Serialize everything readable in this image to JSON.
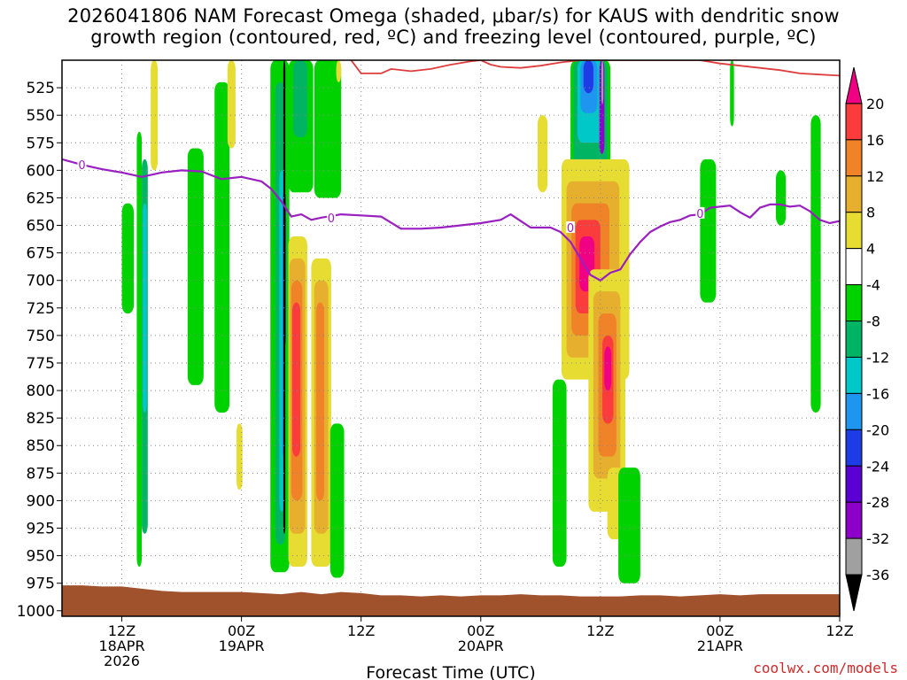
{
  "title_line1": "2026041806 NAM Forecast Omega (shaded, μbar/s) for KAUS with dendritic snow",
  "title_line2": "growth region (contoured, red, ºC) and freezing level (contoured, purple, ºC)",
  "credit": "coolwx.com/models",
  "chart_data": {
    "type": "heatmap",
    "title": "2026041806 NAM Forecast Omega (shaded, μbar/s) for KAUS with dendritic snow growth region (contoured, red, ºC) and freezing level (contoured, purple, ºC)",
    "xlabel": "Forecast Time (UTC)",
    "ylabel": "Pressure (hPa)",
    "x_hours_range": [
      6,
      84
    ],
    "y_pressure_range": [
      500,
      1005
    ],
    "y_ticks": [
      525,
      550,
      575,
      600,
      625,
      650,
      675,
      700,
      725,
      750,
      775,
      800,
      825,
      850,
      875,
      900,
      925,
      950,
      975,
      1000
    ],
    "x_ticks": [
      {
        "hour": 12,
        "lines": [
          "12Z",
          "18APR",
          "2026"
        ]
      },
      {
        "hour": 24,
        "lines": [
          "00Z",
          "19APR"
        ]
      },
      {
        "hour": 36,
        "lines": [
          "12Z"
        ]
      },
      {
        "hour": 48,
        "lines": [
          "00Z",
          "20APR"
        ]
      },
      {
        "hour": 60,
        "lines": [
          "12Z"
        ]
      },
      {
        "hour": 72,
        "lines": [
          "00Z",
          "21APR"
        ]
      },
      {
        "hour": 84,
        "lines": [
          "12Z"
        ]
      }
    ],
    "colorbar": {
      "levels": [
        -36,
        -32,
        -28,
        -24,
        -20,
        -16,
        -12,
        -8,
        -4,
        4,
        8,
        12,
        16,
        20
      ],
      "colors": [
        "#000000",
        "#a0a0a0",
        "#8c00c8",
        "#5a00d2",
        "#1e3ce6",
        "#1e96f0",
        "#00c8c8",
        "#00b464",
        "#00d200",
        "#ffffff",
        "#e6dc32",
        "#e6af2d",
        "#f08228",
        "#fa3c3c",
        "#f00082"
      ]
    },
    "omega_cells": [
      {
        "t": [
          13.5,
          14.0
        ],
        "p": [
          565,
          960
        ],
        "v": -6
      },
      {
        "t": [
          14.0,
          14.6
        ],
        "p": [
          590,
          930
        ],
        "v": -10
      },
      {
        "t": [
          14.1,
          14.5
        ],
        "p": [
          630,
          820
        ],
        "v": -14
      },
      {
        "t": [
          12.0,
          13.2
        ],
        "p": [
          630,
          730
        ],
        "v": -6
      },
      {
        "t": [
          18.6,
          20.2
        ],
        "p": [
          580,
          795
        ],
        "v": -6
      },
      {
        "t": [
          21.3,
          22.8
        ],
        "p": [
          520,
          820
        ],
        "v": -6
      },
      {
        "t": [
          14.9,
          15.6
        ],
        "p": [
          500,
          600
        ],
        "v": 5
      },
      {
        "t": [
          22.6,
          23.4
        ],
        "p": [
          500,
          580
        ],
        "v": 5
      },
      {
        "t": [
          23.5,
          24.1
        ],
        "p": [
          830,
          890
        ],
        "v": 5
      },
      {
        "t": [
          26.9,
          28.8
        ],
        "p": [
          500,
          965
        ],
        "v": -6
      },
      {
        "t": [
          27.4,
          28.4
        ],
        "p": [
          520,
          940
        ],
        "v": -10
      },
      {
        "t": [
          27.8,
          28.3
        ],
        "p": [
          600,
          910
        ],
        "v": -14
      },
      {
        "t": [
          28.1,
          28.4
        ],
        "p": [
          620,
          860
        ],
        "v": -18
      },
      {
        "t": [
          28.2,
          28.45
        ],
        "p": [
          620,
          760
        ],
        "v": -26
      },
      {
        "t": [
          28.2,
          28.4
        ],
        "p": [
          500,
          930
        ],
        "v": -38
      },
      {
        "t": [
          28.7,
          31.2
        ],
        "p": [
          500,
          620
        ],
        "v": -6
      },
      {
        "t": [
          29.2,
          30.6
        ],
        "p": [
          500,
          570
        ],
        "v": -10
      },
      {
        "t": [
          28.7,
          30.6
        ],
        "p": [
          660,
          960
        ],
        "v": 5
      },
      {
        "t": [
          28.8,
          30.4
        ],
        "p": [
          680,
          930
        ],
        "v": 9
      },
      {
        "t": [
          29.0,
          30.1
        ],
        "p": [
          700,
          900
        ],
        "v": 13
      },
      {
        "t": [
          29.1,
          29.9
        ],
        "p": [
          720,
          860
        ],
        "v": 17
      },
      {
        "t": [
          31.0,
          33.0
        ],
        "p": [
          680,
          960
        ],
        "v": 5
      },
      {
        "t": [
          31.3,
          32.7
        ],
        "p": [
          700,
          930
        ],
        "v": 9
      },
      {
        "t": [
          31.5,
          32.3
        ],
        "p": [
          720,
          900
        ],
        "v": 13
      },
      {
        "t": [
          32.9,
          34.3
        ],
        "p": [
          830,
          970
        ],
        "v": -6
      },
      {
        "t": [
          31.3,
          34.0
        ],
        "p": [
          500,
          625
        ],
        "v": -6
      },
      {
        "t": [
          33.5,
          34.0
        ],
        "p": [
          500,
          520
        ],
        "v": 5
      },
      {
        "t": [
          53.7,
          54.7
        ],
        "p": [
          550,
          620
        ],
        "v": 5
      },
      {
        "t": [
          55.2,
          56.6
        ],
        "p": [
          790,
          960
        ],
        "v": -6
      },
      {
        "t": [
          57.0,
          61.0
        ],
        "p": [
          500,
          640
        ],
        "v": -6
      },
      {
        "t": [
          57.3,
          60.7
        ],
        "p": [
          500,
          605
        ],
        "v": -10
      },
      {
        "t": [
          57.7,
          60.2
        ],
        "p": [
          500,
          575
        ],
        "v": -14
      },
      {
        "t": [
          58.0,
          59.7
        ],
        "p": [
          500,
          548
        ],
        "v": -18
      },
      {
        "t": [
          58.3,
          59.3
        ],
        "p": [
          500,
          530
        ],
        "v": -22
      },
      {
        "t": [
          59.9,
          60.4
        ],
        "p": [
          500,
          585
        ],
        "v": -28
      },
      {
        "t": [
          60.1,
          60.3
        ],
        "p": [
          500,
          540
        ],
        "v": -34
      },
      {
        "t": [
          56.1,
          62.9
        ],
        "p": [
          590,
          790
        ],
        "v": 5
      },
      {
        "t": [
          56.6,
          61.9
        ],
        "p": [
          610,
          770
        ],
        "v": 9
      },
      {
        "t": [
          57.1,
          60.9
        ],
        "p": [
          630,
          750
        ],
        "v": 13
      },
      {
        "t": [
          57.5,
          60.0
        ],
        "p": [
          645,
          730
        ],
        "v": 17
      },
      {
        "t": [
          57.9,
          59.4
        ],
        "p": [
          660,
          710
        ],
        "v": 21
      },
      {
        "t": [
          58.8,
          62.5
        ],
        "p": [
          690,
          910
        ],
        "v": 5
      },
      {
        "t": [
          59.3,
          62.0
        ],
        "p": [
          710,
          880
        ],
        "v": 9
      },
      {
        "t": [
          59.8,
          61.6
        ],
        "p": [
          730,
          860
        ],
        "v": 13
      },
      {
        "t": [
          60.2,
          61.3
        ],
        "p": [
          750,
          830
        ],
        "v": 17
      },
      {
        "t": [
          60.4,
          61.1
        ],
        "p": [
          760,
          800
        ],
        "v": 21
      },
      {
        "t": [
          60.7,
          62.4
        ],
        "p": [
          870,
          935
        ],
        "v": 5
      },
      {
        "t": [
          61.8,
          64.0
        ],
        "p": [
          870,
          975
        ],
        "v": -6
      },
      {
        "t": [
          70.0,
          71.6
        ],
        "p": [
          590,
          720
        ],
        "v": -6
      },
      {
        "t": [
          73.0,
          73.4
        ],
        "p": [
          500,
          560
        ],
        "v": -6
      },
      {
        "t": [
          77.6,
          78.6
        ],
        "p": [
          600,
          650
        ],
        "v": -6
      },
      {
        "t": [
          81.1,
          82.1
        ],
        "p": [
          550,
          820
        ],
        "v": -6
      },
      {
        "t": [
          84.5,
          86.1
        ],
        "p": [
          500,
          600
        ],
        "v": -6
      },
      {
        "t": [
          84.3,
          85.9
        ],
        "p": [
          600,
          760
        ],
        "v": -6
      },
      {
        "t": [
          84.8,
          85.5
        ],
        "p": [
          640,
          720
        ],
        "v": -10
      },
      {
        "t": [
          86.4,
          88.2
        ],
        "p": [
          630,
          830
        ],
        "v": -6
      },
      {
        "t": [
          87.0,
          88.0
        ],
        "p": [
          700,
          830
        ],
        "v": -10
      },
      {
        "t": [
          87.8,
          91.3
        ],
        "p": [
          665,
          970
        ],
        "v": -6
      },
      {
        "t": [
          88.8,
          90.1
        ],
        "p": [
          700,
          930
        ],
        "v": -10
      }
    ],
    "freezing_level": {
      "color": "#9a1fc0",
      "label": "0",
      "points": [
        [
          6,
          590
        ],
        [
          8,
          595
        ],
        [
          10,
          599
        ],
        [
          12,
          602
        ],
        [
          14,
          606
        ],
        [
          16,
          602
        ],
        [
          18,
          600
        ],
        [
          20,
          601
        ],
        [
          22,
          608
        ],
        [
          24,
          606
        ],
        [
          26,
          610
        ],
        [
          27,
          617
        ],
        [
          28,
          628
        ],
        [
          29,
          642
        ],
        [
          30,
          640
        ],
        [
          31,
          645
        ],
        [
          32,
          643
        ],
        [
          34,
          640
        ],
        [
          36,
          641
        ],
        [
          38,
          642
        ],
        [
          40,
          653
        ],
        [
          42,
          653
        ],
        [
          44,
          652
        ],
        [
          46,
          650
        ],
        [
          48,
          648
        ],
        [
          50,
          645
        ],
        [
          51,
          640
        ],
        [
          52,
          646
        ],
        [
          53,
          652
        ],
        [
          55,
          652
        ],
        [
          56,
          656
        ],
        [
          57,
          665
        ],
        [
          58,
          680
        ],
        [
          59,
          695
        ],
        [
          60,
          700
        ],
        [
          61,
          693
        ],
        [
          62,
          690
        ],
        [
          63,
          676
        ],
        [
          64,
          665
        ],
        [
          65,
          656
        ],
        [
          66,
          651
        ],
        [
          67,
          647
        ],
        [
          68,
          645
        ],
        [
          69,
          641
        ],
        [
          70,
          640
        ],
        [
          71,
          634
        ],
        [
          72,
          633
        ],
        [
          73,
          632
        ],
        [
          74,
          638
        ],
        [
          75,
          643
        ],
        [
          76,
          634
        ],
        [
          77,
          631
        ],
        [
          78,
          631
        ],
        [
          79,
          633
        ],
        [
          80,
          632
        ],
        [
          81,
          637
        ],
        [
          82,
          645
        ],
        [
          83,
          648
        ],
        [
          84,
          646
        ],
        [
          85,
          651
        ],
        [
          86,
          653
        ],
        [
          87,
          657
        ],
        [
          88,
          656
        ],
        [
          89,
          654
        ],
        [
          90,
          652
        ],
        [
          91,
          653
        ],
        [
          91.8,
          640
        ]
      ],
      "label_points": [
        [
          8,
          595
        ],
        [
          33,
          643
        ],
        [
          57,
          652
        ],
        [
          70,
          639
        ]
      ]
    },
    "dendritic_growth": {
      "color": "#e03c3c",
      "points": [
        [
          35,
          500
        ],
        [
          36,
          512
        ],
        [
          38,
          512
        ],
        [
          39,
          508
        ],
        [
          41,
          510
        ],
        [
          43,
          508
        ],
        [
          45,
          504
        ],
        [
          47,
          501
        ],
        [
          48,
          500
        ],
        [
          49,
          504
        ],
        [
          50,
          506
        ],
        [
          52,
          507
        ],
        [
          54,
          505
        ],
        [
          56,
          502
        ],
        [
          58,
          500
        ],
        [
          70,
          500
        ],
        [
          72,
          503
        ],
        [
          74,
          505
        ],
        [
          76,
          507
        ],
        [
          78,
          509
        ],
        [
          80,
          512
        ],
        [
          82,
          513
        ],
        [
          84,
          514
        ],
        [
          86,
          515
        ],
        [
          88,
          517
        ],
        [
          90,
          520
        ],
        [
          91.8,
          521
        ]
      ]
    },
    "surface": {
      "color": "#a0522d",
      "points": [
        [
          6,
          977
        ],
        [
          8,
          977
        ],
        [
          10,
          978
        ],
        [
          12,
          978
        ],
        [
          14,
          980
        ],
        [
          16,
          982
        ],
        [
          18,
          983
        ],
        [
          20,
          983
        ],
        [
          22,
          983
        ],
        [
          24,
          983
        ],
        [
          26,
          984
        ],
        [
          28,
          985
        ],
        [
          30,
          983
        ],
        [
          32,
          985
        ],
        [
          34,
          983
        ],
        [
          36,
          984
        ],
        [
          38,
          986
        ],
        [
          40,
          986
        ],
        [
          42,
          987
        ],
        [
          44,
          986
        ],
        [
          46,
          987
        ],
        [
          48,
          986
        ],
        [
          50,
          986
        ],
        [
          52,
          985
        ],
        [
          54,
          986
        ],
        [
          56,
          986
        ],
        [
          58,
          987
        ],
        [
          60,
          987
        ],
        [
          62,
          987
        ],
        [
          64,
          986
        ],
        [
          66,
          986
        ],
        [
          68,
          987
        ],
        [
          70,
          986
        ],
        [
          72,
          985
        ],
        [
          74,
          986
        ],
        [
          76,
          985
        ],
        [
          78,
          985
        ],
        [
          80,
          985
        ],
        [
          82,
          985
        ],
        [
          84,
          985
        ],
        [
          86,
          985
        ],
        [
          88,
          985
        ],
        [
          90,
          985
        ],
        [
          91.8,
          985
        ]
      ]
    }
  }
}
